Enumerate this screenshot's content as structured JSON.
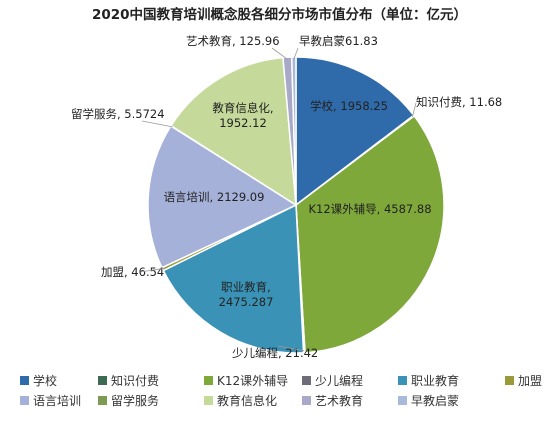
{
  "chart_data": {
    "type": "pie",
    "title": "2020中国教育培训概念股各细分市场市值分布（单位：亿元）",
    "categories": [
      "学校",
      "知识付费",
      "K12课外辅导",
      "少儿编程",
      "职业教育",
      "加盟",
      "语言培训",
      "留学服务",
      "教育信息化",
      "艺术教育",
      "早教启蒙"
    ],
    "values": [
      1958.25,
      11.68,
      4587.88,
      21.42,
      2475.287,
      46.54,
      2129.09,
      5.5724,
      1952.12,
      125.96,
      61.83
    ],
    "value_labels": [
      "1958.25",
      "11.68",
      "4587.88",
      "21.42",
      "2475.287",
      "46.54",
      "2129.09",
      "5.5724",
      "1952.12",
      "125.96",
      "61.83"
    ],
    "colors": [
      "#2f6aaa",
      "#3f6a52",
      "#7ea83a",
      "#6f6c7a",
      "#3a93b6",
      "#9a9a3a",
      "#a5b1d8",
      "#7c9a52",
      "#c4d99a",
      "#a8a8c8",
      "#a9b9dc"
    ],
    "legend_position": "bottom",
    "legend_rows": [
      [
        0,
        1,
        2,
        3,
        4,
        5
      ],
      [
        6,
        7,
        8,
        9,
        10
      ]
    ]
  }
}
